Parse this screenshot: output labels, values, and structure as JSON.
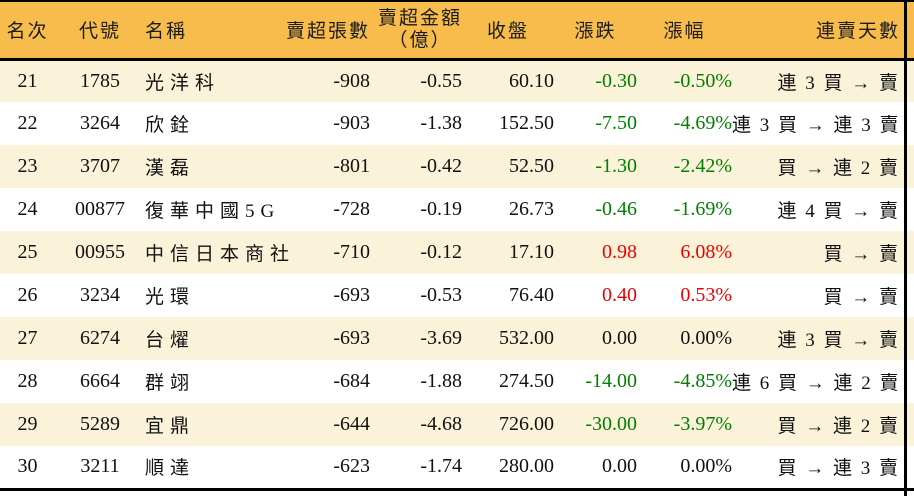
{
  "colors": {
    "header_bg": "#F7BC4C",
    "row_alt_bg": "#FBF2DA",
    "row_bg": "#FFFFFF",
    "up_red": "#EE0000",
    "down_green": "#008000",
    "border": "#000000",
    "text": "#111111"
  },
  "chart_data": {
    "type": "table",
    "columns": [
      "名次",
      "代號",
      "名稱",
      "賣超張數",
      "賣超金額（億）",
      "收盤",
      "漲跌",
      "漲幅",
      "連賣天數"
    ],
    "headers": {
      "rank": "名次",
      "code": "代號",
      "name": "名稱",
      "volume": "賣超張數",
      "amount_line1": "賣超金額",
      "amount_line2": "（億）",
      "close": "收盤",
      "change": "漲跌",
      "change_pct": "漲幅",
      "streak": "連賣天數"
    },
    "rows": [
      {
        "rank": "21",
        "code": "1785",
        "name": "光洋科",
        "volume": "-908",
        "amount": "-0.55",
        "close": "60.10",
        "change": "-0.30",
        "change_pct": "-0.50%",
        "trend": "down",
        "streak": "連 3 買 → 賣"
      },
      {
        "rank": "22",
        "code": "3264",
        "name": "欣銓",
        "volume": "-903",
        "amount": "-1.38",
        "close": "152.50",
        "change": "-7.50",
        "change_pct": "-4.69%",
        "trend": "down",
        "streak": "連 3 買 → 連 3 賣"
      },
      {
        "rank": "23",
        "code": "3707",
        "name": "漢磊",
        "volume": "-801",
        "amount": "-0.42",
        "close": "52.50",
        "change": "-1.30",
        "change_pct": "-2.42%",
        "trend": "down",
        "streak": "買 → 連 2 賣"
      },
      {
        "rank": "24",
        "code": "00877",
        "name": "復華中國5G",
        "volume": "-728",
        "amount": "-0.19",
        "close": "26.73",
        "change": "-0.46",
        "change_pct": "-1.69%",
        "trend": "down",
        "streak": "連 4 買 → 賣"
      },
      {
        "rank": "25",
        "code": "00955",
        "name": "中信日本商社",
        "volume": "-710",
        "amount": "-0.12",
        "close": "17.10",
        "change": "0.98",
        "change_pct": "6.08%",
        "trend": "up",
        "streak": "買 → 賣"
      },
      {
        "rank": "26",
        "code": "3234",
        "name": "光環",
        "volume": "-693",
        "amount": "-0.53",
        "close": "76.40",
        "change": "0.40",
        "change_pct": "0.53%",
        "trend": "up",
        "streak": "買 → 賣"
      },
      {
        "rank": "27",
        "code": "6274",
        "name": "台燿",
        "volume": "-693",
        "amount": "-3.69",
        "close": "532.00",
        "change": "0.00",
        "change_pct": "0.00%",
        "trend": "flat",
        "streak": "連 3 買 → 賣"
      },
      {
        "rank": "28",
        "code": "6664",
        "name": "群翊",
        "volume": "-684",
        "amount": "-1.88",
        "close": "274.50",
        "change": "-14.00",
        "change_pct": "-4.85%",
        "trend": "down",
        "streak": "連 6 買 → 連 2 賣"
      },
      {
        "rank": "29",
        "code": "5289",
        "name": "宜鼎",
        "volume": "-644",
        "amount": "-4.68",
        "close": "726.00",
        "change": "-30.00",
        "change_pct": "-3.97%",
        "trend": "down",
        "streak": "買 → 連 2 賣"
      },
      {
        "rank": "30",
        "code": "3211",
        "name": "順達",
        "volume": "-623",
        "amount": "-1.74",
        "close": "280.00",
        "change": "0.00",
        "change_pct": "0.00%",
        "trend": "flat",
        "streak": "買 → 連 3 賣"
      }
    ]
  }
}
